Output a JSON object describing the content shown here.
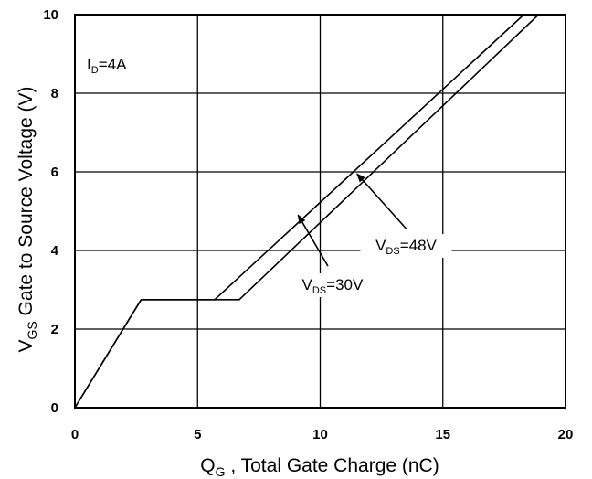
{
  "chart_data": {
    "type": "line",
    "xlabel": {
      "main": "Q",
      "sub": "G",
      "rest": " , Total Gate Charge (nC)"
    },
    "ylabel": {
      "main": "V",
      "sub": "GS",
      "rest": "  Gate to Source Voltage (V)"
    },
    "xlim": [
      0,
      20
    ],
    "ylim": [
      0,
      10
    ],
    "xticks": [
      "0",
      "5",
      "10",
      "15",
      "20"
    ],
    "yticks": [
      "0",
      "2",
      "4",
      "6",
      "8",
      "10"
    ],
    "grid": true,
    "condition": {
      "main": "I",
      "sub": "D",
      "rest": "=4A"
    },
    "series": [
      {
        "name": "V<sub>DS</sub>=30V",
        "label": {
          "main": "V",
          "sub": "DS",
          "rest": "=30V"
        },
        "x": [
          0,
          2.7,
          5.7,
          18.3
        ],
        "y": [
          0,
          2.75,
          2.75,
          10
        ]
      },
      {
        "name": "V<sub>DS</sub>=48V",
        "label": {
          "main": "V",
          "sub": "DS",
          "rest": "=48V"
        },
        "x": [
          0,
          2.7,
          6.7,
          18.9
        ],
        "y": [
          0,
          2.75,
          2.75,
          10
        ]
      }
    ],
    "annotations": [
      {
        "series": 0,
        "point_to": [
          9.1,
          4.9
        ],
        "text_at": [
          10.5,
          3.0
        ]
      },
      {
        "series": 1,
        "point_to": [
          11.5,
          5.95
        ],
        "text_at": [
          13.5,
          4.0
        ]
      }
    ]
  }
}
